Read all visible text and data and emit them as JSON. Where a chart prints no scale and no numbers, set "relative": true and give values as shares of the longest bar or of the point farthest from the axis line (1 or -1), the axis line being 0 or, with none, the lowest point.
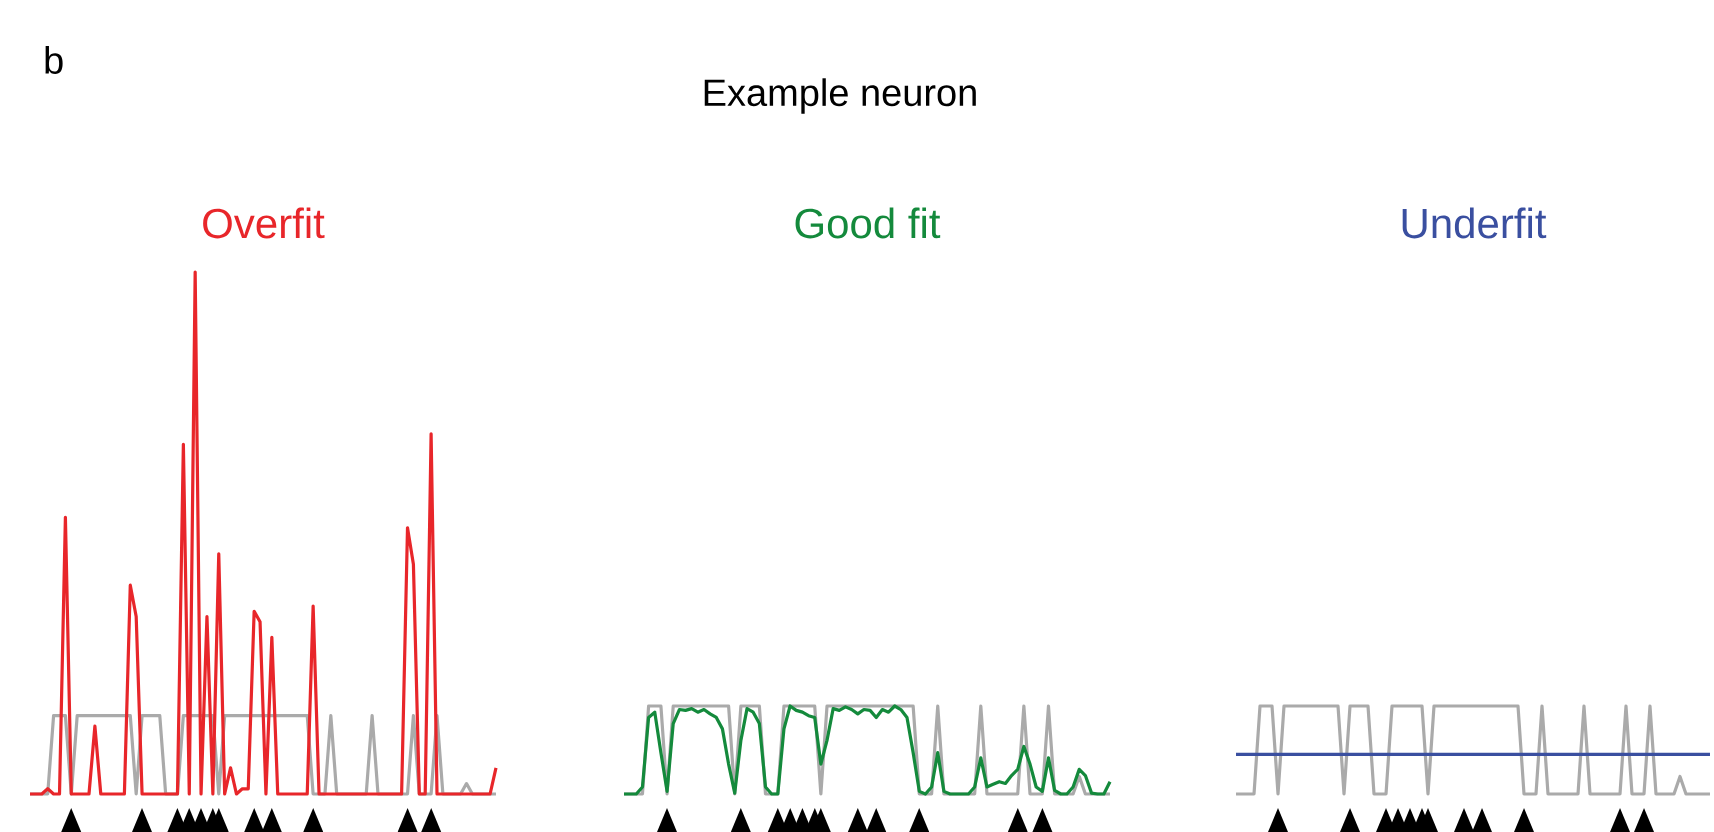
{
  "chart_data": [
    {
      "type": "line",
      "title": "Overfit",
      "relative": true,
      "annotations": [
        "b",
        "Example neuron"
      ],
      "categories": [
        null,
        null,
        null,
        null,
        null,
        null,
        null,
        null,
        null,
        null,
        null,
        null,
        null,
        null,
        null,
        null,
        null,
        null,
        null,
        null,
        null,
        null,
        null,
        null,
        null,
        null,
        null,
        null,
        null,
        null,
        null,
        null,
        null,
        null,
        null,
        null,
        null,
        null,
        null,
        null,
        null,
        null,
        null,
        null,
        null,
        null,
        null,
        null,
        null,
        null,
        null,
        null,
        null,
        null,
        null,
        null,
        null,
        null,
        null,
        null,
        null,
        null,
        null,
        null,
        null,
        null,
        null,
        null,
        null,
        null,
        null,
        null,
        null,
        null,
        null,
        null,
        null,
        null,
        null,
        null
      ],
      "series": [
        {
          "color": "#aaaaaa",
          "values": [
            0,
            0,
            0,
            0,
            0.15,
            0.15,
            0.15,
            0,
            0.15,
            0.15,
            0.15,
            0.15,
            0.15,
            0.15,
            0.15,
            0.15,
            0.15,
            0.15,
            0,
            0.15,
            0.15,
            0.15,
            0.15,
            0,
            0,
            0,
            0.15,
            0.15,
            0.15,
            0.15,
            0.15,
            0.15,
            0,
            0.15,
            0.15,
            0.15,
            0.15,
            0.15,
            0.15,
            0.15,
            0.15,
            0.15,
            0.15,
            0.15,
            0.15,
            0.15,
            0.15,
            0.15,
            0,
            0,
            0,
            0.15,
            0,
            0,
            0,
            0,
            0,
            0,
            0.15,
            0,
            0,
            0,
            0,
            0,
            0,
            0.15,
            0,
            0,
            0,
            0.15,
            0,
            0,
            0,
            0,
            0.02,
            0,
            0,
            0,
            0,
            0
          ]
        },
        {
          "color": "#e8262a",
          "values": [
            0,
            0,
            0,
            0.01,
            0,
            0,
            0.53,
            0,
            0,
            0,
            0,
            0.13,
            0,
            0,
            0,
            0,
            0,
            0.4,
            0.34,
            0,
            0,
            0,
            0,
            0,
            0,
            0,
            0.67,
            0,
            1.0,
            0,
            0.34,
            0,
            0.46,
            0,
            0.05,
            0,
            0.01,
            0.01,
            0.35,
            0.33,
            0,
            0.3,
            0,
            0,
            0,
            0,
            0,
            0,
            0.36,
            0,
            0,
            0,
            0,
            0,
            0,
            0,
            0,
            0,
            0,
            0,
            0,
            0,
            0,
            0,
            0.51,
            0.44,
            0,
            0,
            0.69,
            0,
            0,
            0,
            0,
            0,
            0,
            0,
            0,
            0,
            0,
            0.05
          ]
        }
      ]
    },
    {
      "type": "line",
      "title": "Good fit",
      "relative": true,
      "categories": [
        null,
        null,
        null,
        null,
        null,
        null,
        null,
        null,
        null,
        null,
        null,
        null,
        null,
        null,
        null,
        null,
        null,
        null,
        null,
        null,
        null,
        null,
        null,
        null,
        null,
        null,
        null,
        null,
        null,
        null,
        null,
        null,
        null,
        null,
        null,
        null,
        null,
        null,
        null,
        null,
        null,
        null,
        null,
        null,
        null,
        null,
        null,
        null,
        null,
        null,
        null,
        null,
        null,
        null,
        null,
        null,
        null,
        null,
        null,
        null,
        null,
        null,
        null,
        null,
        null,
        null,
        null,
        null,
        null,
        null,
        null,
        null,
        null,
        null,
        null,
        null,
        null,
        null,
        null,
        null
      ],
      "series": [
        {
          "color": "#aaaaaa",
          "values": [
            0,
            0,
            0,
            0,
            1,
            1,
            1,
            0,
            1,
            1,
            1,
            1,
            1,
            1,
            1,
            1,
            1,
            1,
            0,
            1,
            1,
            1,
            1,
            0,
            0,
            0,
            1,
            1,
            1,
            1,
            1,
            1,
            0,
            1,
            1,
            1,
            1,
            1,
            1,
            1,
            1,
            1,
            1,
            1,
            1,
            1,
            1,
            1,
            0,
            0,
            0,
            1,
            0,
            0,
            0,
            0,
            0,
            0,
            1,
            0,
            0,
            0,
            0,
            0,
            0,
            1,
            0,
            0,
            0,
            1,
            0,
            0,
            0,
            0,
            0.2,
            0,
            0,
            0,
            0,
            0
          ]
        },
        {
          "color": "#148a3c",
          "values": [
            0,
            0,
            0,
            0.08,
            0.87,
            0.93,
            0.47,
            0.03,
            0.8,
            0.96,
            0.95,
            0.97,
            0.93,
            0.96,
            0.91,
            0.87,
            0.74,
            0.34,
            0.01,
            0.61,
            0.97,
            0.93,
            0.8,
            0.08,
            0,
            0,
            0.74,
            1.0,
            0.95,
            0.93,
            0.89,
            0.87,
            0.34,
            0.61,
            0.97,
            0.95,
            0.99,
            0.96,
            0.91,
            0.96,
            0.95,
            0.87,
            0.96,
            0.93,
            1.0,
            0.96,
            0.87,
            0.47,
            0.03,
            0,
            0.08,
            0.47,
            0.03,
            0,
            0,
            0,
            0,
            0.08,
            0.41,
            0.08,
            0.11,
            0.14,
            0.12,
            0.21,
            0.28,
            0.54,
            0.34,
            0.08,
            0.03,
            0.41,
            0.04,
            0,
            0,
            0.08,
            0.28,
            0.21,
            0.01,
            0,
            0,
            0.14
          ]
        }
      ]
    },
    {
      "type": "line",
      "title": "Underfit",
      "relative": true,
      "categories": [
        null,
        null,
        null,
        null,
        null,
        null,
        null,
        null,
        null,
        null,
        null,
        null,
        null,
        null,
        null,
        null,
        null,
        null,
        null,
        null,
        null,
        null,
        null,
        null,
        null,
        null,
        null,
        null,
        null,
        null,
        null,
        null,
        null,
        null,
        null,
        null,
        null,
        null,
        null,
        null,
        null,
        null,
        null,
        null,
        null,
        null,
        null,
        null,
        null,
        null,
        null,
        null,
        null,
        null,
        null,
        null,
        null,
        null,
        null,
        null,
        null,
        null,
        null,
        null,
        null,
        null,
        null,
        null,
        null,
        null,
        null,
        null,
        null,
        null,
        null,
        null,
        null,
        null,
        null,
        null
      ],
      "series": [
        {
          "color": "#aaaaaa",
          "values": [
            0,
            0,
            0,
            0,
            1,
            1,
            1,
            0,
            1,
            1,
            1,
            1,
            1,
            1,
            1,
            1,
            1,
            1,
            0,
            1,
            1,
            1,
            1,
            0,
            0,
            0,
            1,
            1,
            1,
            1,
            1,
            1,
            0,
            1,
            1,
            1,
            1,
            1,
            1,
            1,
            1,
            1,
            1,
            1,
            1,
            1,
            1,
            1,
            0,
            0,
            0,
            1,
            0,
            0,
            0,
            0,
            0,
            0,
            1,
            0,
            0,
            0,
            0,
            0,
            0,
            1,
            0,
            0,
            0,
            1,
            0,
            0,
            0,
            0,
            0.2,
            0,
            0,
            0,
            0,
            0
          ]
        },
        {
          "color": "#3a4fa0",
          "values": [
            0.45,
            0.45,
            0.45,
            0.45,
            0.45,
            0.45,
            0.45,
            0.45,
            0.45,
            0.45,
            0.45,
            0.45,
            0.45,
            0.45,
            0.45,
            0.45,
            0.45,
            0.45,
            0.45,
            0.45,
            0.45,
            0.45,
            0.45,
            0.45,
            0.45,
            0.45,
            0.45,
            0.45,
            0.45,
            0.45,
            0.45,
            0.45,
            0.45,
            0.45,
            0.45,
            0.45,
            0.45,
            0.45,
            0.45,
            0.45,
            0.45,
            0.45,
            0.45,
            0.45,
            0.45,
            0.45,
            0.45,
            0.45,
            0.45,
            0.45,
            0.45,
            0.45,
            0.45,
            0.45,
            0.45,
            0.45,
            0.45,
            0.45,
            0.45,
            0.45,
            0.45,
            0.45,
            0.45,
            0.45,
            0.45,
            0.45,
            0.45,
            0.45,
            0.45,
            0.45,
            0.45,
            0.45,
            0.45,
            0.45,
            0.45,
            0.45,
            0.45,
            0.45,
            0.45,
            0.45
          ]
        }
      ]
    }
  ]
}
